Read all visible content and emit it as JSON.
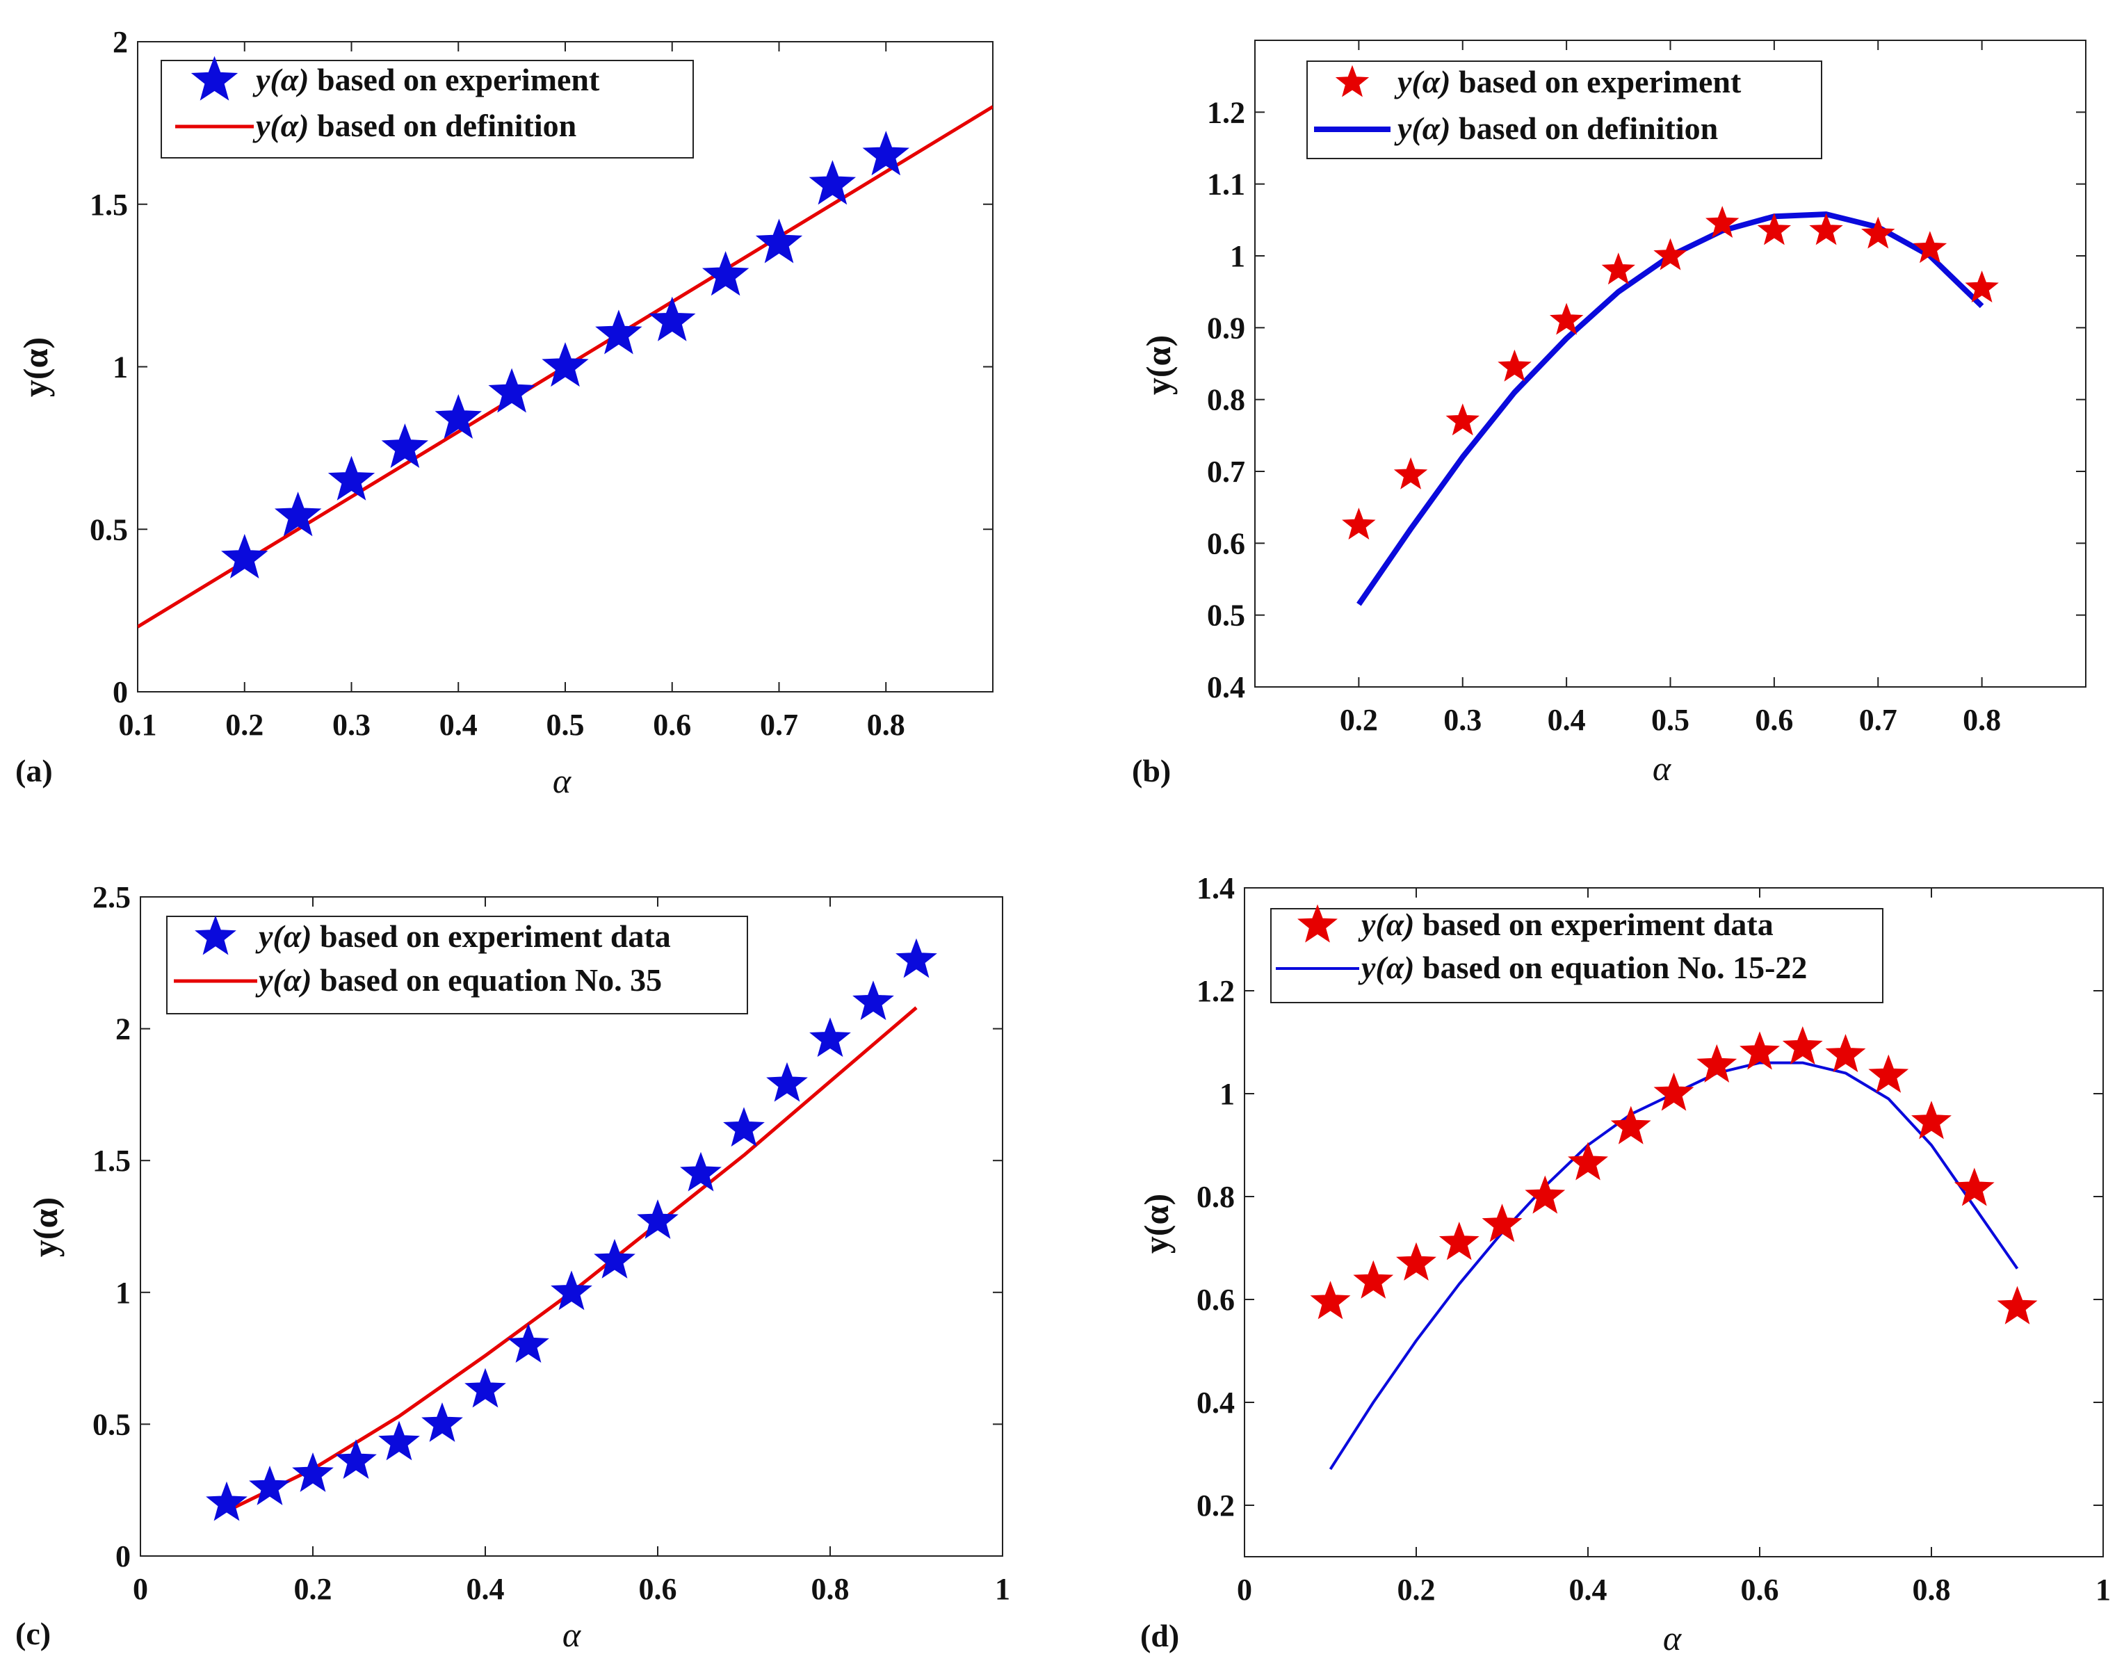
{
  "chart_data": [
    {
      "panel_label": "(a)",
      "type": "line+scatter",
      "xlabel": "α",
      "ylabel": "y(α)",
      "xlim": [
        0.1,
        0.9
      ],
      "ylim": [
        0,
        2
      ],
      "xticks": [
        0.1,
        0.2,
        0.3,
        0.4,
        0.5,
        0.6,
        0.7,
        0.8
      ],
      "yticks": [
        0,
        0.5,
        1,
        1.5,
        2
      ],
      "xtick_labels": [
        "0.1",
        "0.2",
        "0.3",
        "0.4",
        "0.5",
        "0.6",
        "0.7",
        "0.8"
      ],
      "ytick_labels": [
        "0",
        "0.5",
        "1",
        "1.5",
        "2"
      ],
      "legend_position": "top-left",
      "series": [
        {
          "name": "y(α) based on experiment",
          "name_italic": "y(α)",
          "name_rest": " based on experiment",
          "kind": "scatter",
          "marker": "star",
          "color": "#0a0adc",
          "x": [
            0.2,
            0.25,
            0.3,
            0.35,
            0.4,
            0.45,
            0.5,
            0.55,
            0.6,
            0.65,
            0.7,
            0.75,
            0.8
          ],
          "y": [
            0.41,
            0.54,
            0.65,
            0.75,
            0.84,
            0.92,
            1.0,
            1.1,
            1.14,
            1.28,
            1.38,
            1.56,
            1.65
          ]
        },
        {
          "name": "y(α) based on definition",
          "name_italic": "y(α)",
          "name_rest": " based on definition",
          "kind": "line",
          "color": "#e60000",
          "x": [
            0.1,
            0.9
          ],
          "y": [
            0.2,
            1.8
          ]
        }
      ]
    },
    {
      "panel_label": "(b)",
      "type": "line+scatter",
      "xlabel": "α",
      "ylabel": "y(α)",
      "xlim": [
        0.1,
        0.9
      ],
      "ylim": [
        0.4,
        1.3
      ],
      "xticks": [
        0.2,
        0.3,
        0.4,
        0.5,
        0.6,
        0.7,
        0.8
      ],
      "yticks": [
        0.4,
        0.5,
        0.6,
        0.7,
        0.8,
        0.9,
        1.0,
        1.1,
        1.2
      ],
      "xtick_labels": [
        "0.2",
        "0.3",
        "0.4",
        "0.5",
        "0.6",
        "0.7",
        "0.8"
      ],
      "ytick_labels": [
        "0.4",
        "0.5",
        "0.6",
        "0.7",
        "0.8",
        "0.9",
        "1",
        "1.1",
        "1.2"
      ],
      "legend_position": "top-center",
      "series": [
        {
          "name": "y(α) based on experiment",
          "name_italic": "y(α)",
          "name_rest": " based on experiment",
          "kind": "scatter",
          "marker": "star",
          "color": "#e60000",
          "x": [
            0.2,
            0.25,
            0.3,
            0.35,
            0.4,
            0.45,
            0.5,
            0.55,
            0.6,
            0.65,
            0.7,
            0.75,
            0.8
          ],
          "y": [
            0.625,
            0.695,
            0.77,
            0.845,
            0.91,
            0.98,
            1.0,
            1.045,
            1.035,
            1.035,
            1.03,
            1.01,
            0.955
          ]
        },
        {
          "name": "y(α) based on definition",
          "name_italic": "y(α)",
          "name_rest": " based on definition",
          "kind": "line",
          "color": "#0a0adc",
          "x": [
            0.2,
            0.25,
            0.3,
            0.35,
            0.4,
            0.45,
            0.5,
            0.55,
            0.6,
            0.65,
            0.7,
            0.75,
            0.8
          ],
          "y": [
            0.515,
            0.62,
            0.72,
            0.81,
            0.885,
            0.95,
            1.0,
            1.035,
            1.055,
            1.058,
            1.04,
            1.0,
            0.93
          ]
        }
      ]
    },
    {
      "panel_label": "(c)",
      "type": "line+scatter",
      "xlabel": "α",
      "ylabel": "y(α)",
      "xlim": [
        0,
        1
      ],
      "ylim": [
        0,
        2.5
      ],
      "xticks": [
        0,
        0.2,
        0.4,
        0.6,
        0.8,
        1
      ],
      "yticks": [
        0,
        0.5,
        1,
        1.5,
        2,
        2.5
      ],
      "xtick_labels": [
        "0",
        "0.2",
        "0.4",
        "0.6",
        "0.8",
        "1"
      ],
      "ytick_labels": [
        "0",
        "0.5",
        "1",
        "1.5",
        "2",
        "2.5"
      ],
      "legend_position": "top-left",
      "series": [
        {
          "name": "y(α) based on experiment data",
          "name_italic": "y(α)",
          "name_rest": " based on experiment data",
          "kind": "scatter",
          "marker": "star",
          "color": "#0a0adc",
          "x": [
            0.1,
            0.15,
            0.2,
            0.25,
            0.3,
            0.35,
            0.4,
            0.45,
            0.5,
            0.55,
            0.6,
            0.65,
            0.7,
            0.75,
            0.8,
            0.85,
            0.9
          ],
          "y": [
            0.2,
            0.26,
            0.31,
            0.36,
            0.43,
            0.5,
            0.63,
            0.8,
            1.0,
            1.12,
            1.27,
            1.45,
            1.62,
            1.79,
            1.96,
            2.1,
            2.26
          ]
        },
        {
          "name": "y(α) based on equation No. 35",
          "name_italic": "y(α)",
          "name_rest": " based on equation No. 35",
          "kind": "line",
          "color": "#e60000",
          "x": [
            0.1,
            0.2,
            0.3,
            0.4,
            0.5,
            0.6,
            0.7,
            0.8,
            0.9
          ],
          "y": [
            0.17,
            0.33,
            0.53,
            0.76,
            1.0,
            1.26,
            1.52,
            1.8,
            2.08
          ]
        }
      ]
    },
    {
      "panel_label": "(d)",
      "type": "line+scatter",
      "xlabel": "α",
      "ylabel": "y(α)",
      "xlim": [
        0,
        1
      ],
      "ylim": [
        0.1,
        1.4
      ],
      "xticks": [
        0,
        0.2,
        0.4,
        0.6,
        0.8,
        1
      ],
      "yticks": [
        0.2,
        0.4,
        0.6,
        0.8,
        1.0,
        1.2,
        1.4
      ],
      "xtick_labels": [
        "0",
        "0.2",
        "0.4",
        "0.6",
        "0.8",
        "1"
      ],
      "ytick_labels": [
        "0.2",
        "0.4",
        "0.6",
        "0.8",
        "1",
        "1.2",
        "1.4"
      ],
      "legend_position": "top-left",
      "series": [
        {
          "name": "y(α) based on experiment data",
          "name_italic": "y(α)",
          "name_rest": " based on experiment data",
          "kind": "scatter",
          "marker": "star",
          "color": "#e60000",
          "x": [
            0.1,
            0.15,
            0.2,
            0.25,
            0.3,
            0.35,
            0.4,
            0.45,
            0.5,
            0.55,
            0.6,
            0.65,
            0.7,
            0.75,
            0.8,
            0.85,
            0.9
          ],
          "y": [
            0.595,
            0.635,
            0.67,
            0.71,
            0.745,
            0.8,
            0.865,
            0.935,
            1.0,
            1.055,
            1.08,
            1.09,
            1.075,
            1.035,
            0.945,
            0.815,
            0.585
          ]
        },
        {
          "name": "y(α) based on equation No. 15-22",
          "name_italic": "y(α)",
          "name_rest": " based on equation No. 15-22",
          "kind": "line",
          "color": "#0a0adc",
          "x": [
            0.1,
            0.15,
            0.2,
            0.25,
            0.3,
            0.35,
            0.4,
            0.45,
            0.5,
            0.55,
            0.6,
            0.65,
            0.7,
            0.75,
            0.8,
            0.85,
            0.9
          ],
          "y": [
            0.27,
            0.4,
            0.52,
            0.63,
            0.73,
            0.82,
            0.9,
            0.96,
            1.0,
            1.04,
            1.06,
            1.06,
            1.04,
            0.99,
            0.9,
            0.78,
            0.66
          ]
        }
      ]
    }
  ]
}
